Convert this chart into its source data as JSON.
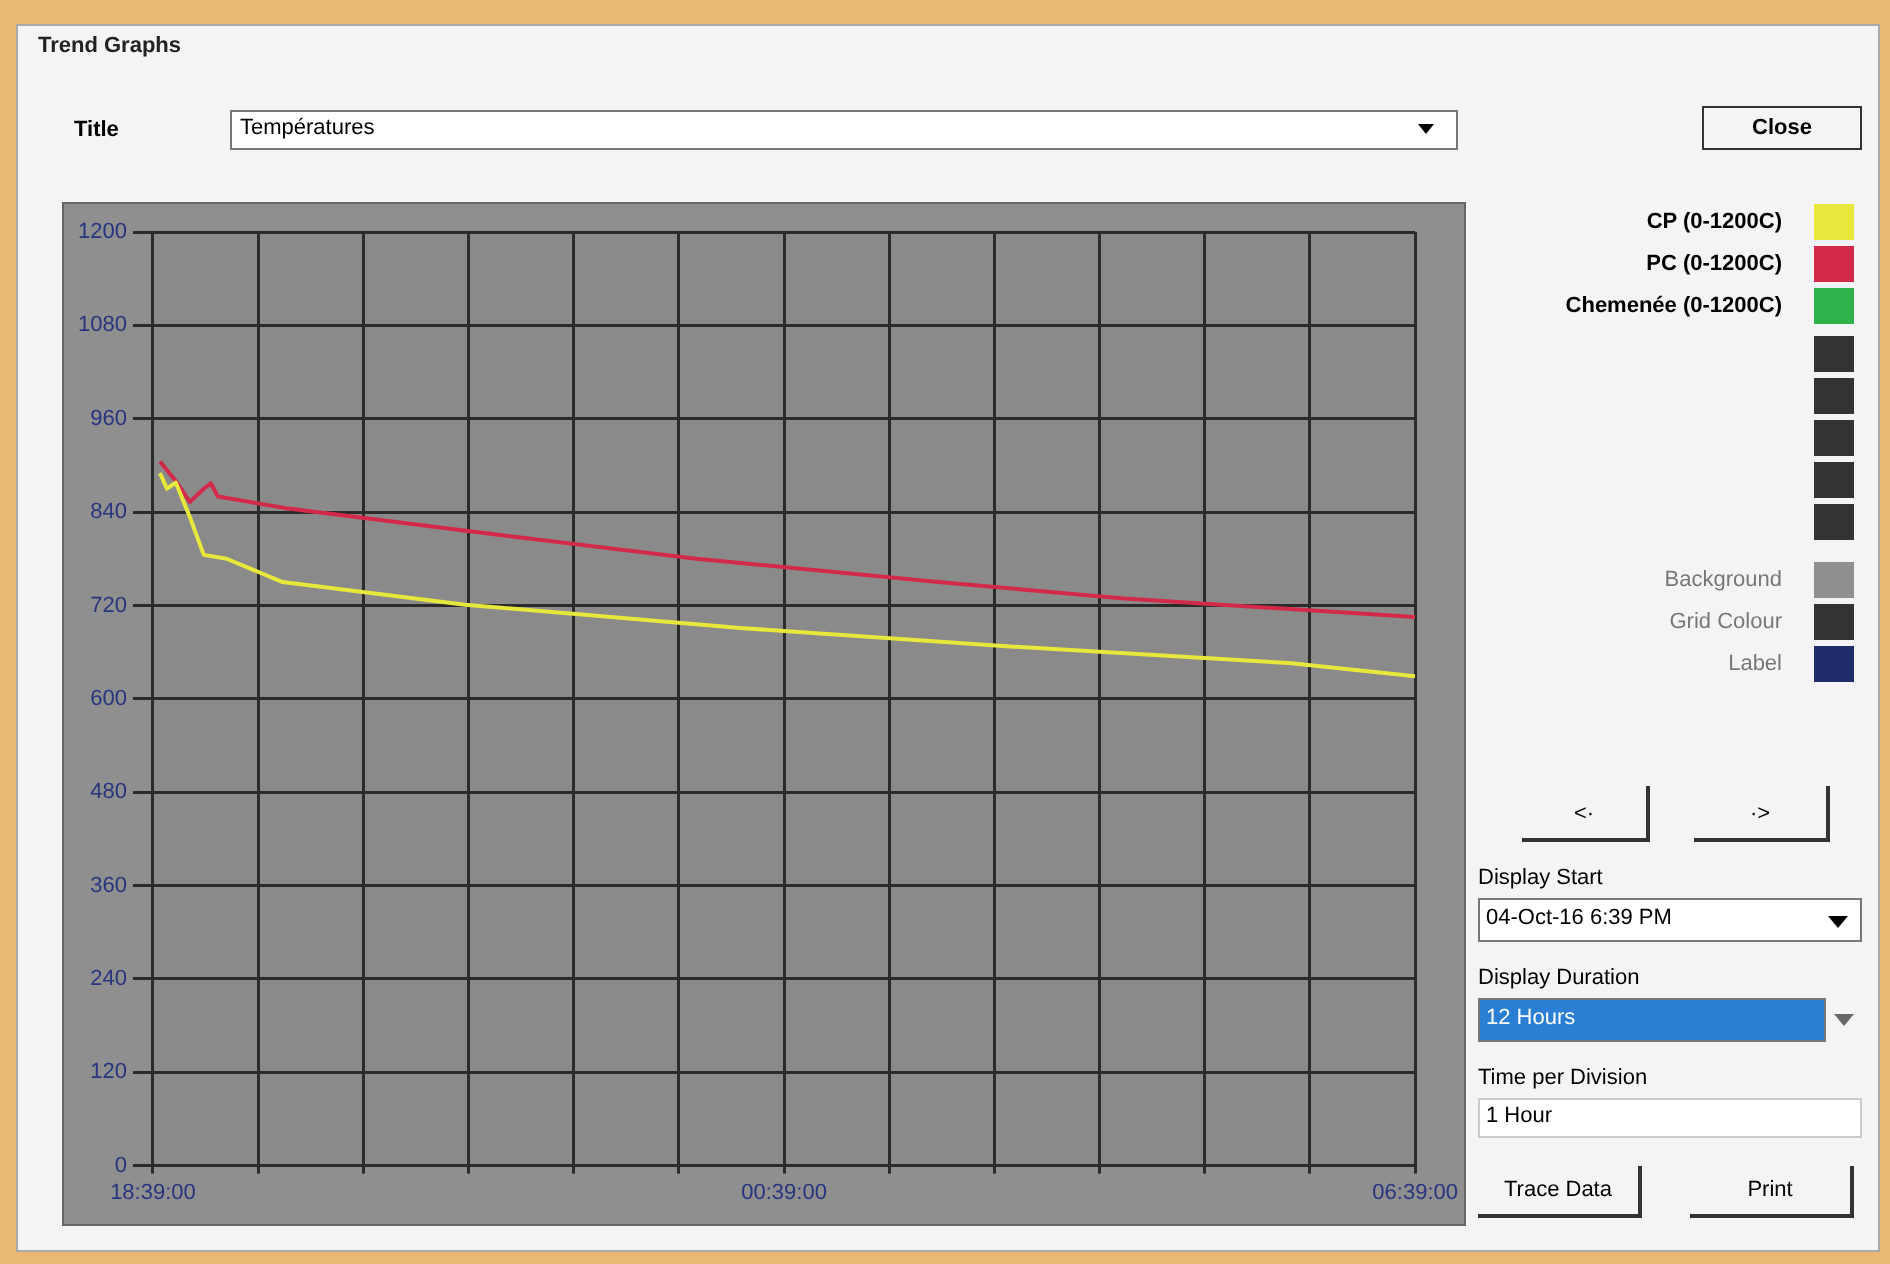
{
  "chart_data": {
    "type": "line",
    "title": "Températures",
    "x": [
      "--10-04T18:43",
      "--10-04T18:52",
      "--10-04T19:00",
      "--10-04T19:08",
      "--10-04T19:12",
      "--10-04T19:16",
      "--10-04T19:55",
      "--10-04T21:41",
      "--10-04T23:49",
      "--10-05T02:07",
      "--10-05T03:53",
      "--10-05T06:39"
    ],
    "series": [
      {
        "name": "CP (0-1200C)",
        "color": "#e8e83c",
        "x": [
          "--10-04T18:43",
          "--10-04T18:47",
          "--10-04T18:52",
          "--10-04T19:00",
          "--10-04T19:08",
          "--10-04T19:21",
          "--10-04T19:53",
          "--10-04T21:37",
          "--10-05T00:14",
          "--10-05T02:50",
          "--10-05T05:27",
          "--10-05T06:39"
        ],
        "values": [
          890,
          870,
          878,
          834,
          785,
          780,
          750,
          721,
          691,
          667,
          646,
          629
        ]
      },
      {
        "name": "PC (0-1200C)",
        "color": "#d42a4a",
        "values": [
          905,
          880,
          853,
          870,
          877,
          860,
          845,
          815,
          780,
          750,
          729,
          705
        ]
      },
      {
        "name": "Chemenée (0-1200C)",
        "color": "#2db34a",
        "values": [
          null,
          null,
          null,
          null,
          null,
          null,
          null,
          null,
          null,
          null,
          null,
          null
        ]
      }
    ],
    "xlim": [
      "--10-04T18:39",
      "--10-05T06:39"
    ],
    "xticks": [
      {
        "value": "--10-04T18:39",
        "label": "18:39:00"
      },
      {
        "value": "--10-04T19:39",
        "label": null
      },
      {
        "value": "--10-04T20:39",
        "label": null
      },
      {
        "value": "--10-04T21:39",
        "label": null
      },
      {
        "value": "--10-04T22:39",
        "label": null
      },
      {
        "value": "--10-04T23:39",
        "label": null
      },
      {
        "value": "--10-05T00:39",
        "label": "00:39:00"
      },
      {
        "value": "--10-05T01:39",
        "label": null
      },
      {
        "value": "--10-05T02:39",
        "label": null
      },
      {
        "value": "--10-05T03:39",
        "label": null
      },
      {
        "value": "--10-05T04:39",
        "label": null
      },
      {
        "value": "--10-05T05:39",
        "label": null
      },
      {
        "value": "--10-05T06:39",
        "label": "06:39:00"
      }
    ],
    "ylim": [
      0,
      1200
    ],
    "yticks": [
      0,
      120,
      240,
      360,
      480,
      600,
      720,
      840,
      960,
      1080,
      1200
    ],
    "grid": true,
    "legend": "right",
    "marker": "none",
    "line_style": "solid",
    "annotations": [
      "Trend Graphs",
      "Title",
      "Close",
      "Background",
      "Grid Colour",
      "Label",
      "Display Start",
      "04-Oct-16  6:39 PM",
      "Display Duration",
      "12 Hours",
      "Time per Division",
      "1 Hour",
      "Trace Data",
      "Print",
      "<·",
      "·>"
    ]
  }
}
